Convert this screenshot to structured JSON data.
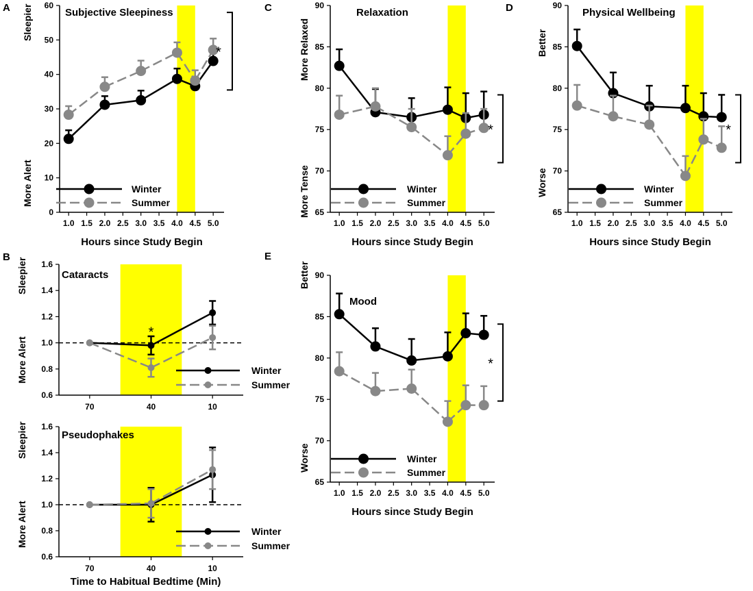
{
  "figure": {
    "shared_xlabel_hours": "Hours since Study Begin",
    "shared_xlabel_bedtime": "Time to Habitual Bedtime (Min)"
  },
  "chart_data": [
    {
      "id": "A",
      "panel_letter": "A",
      "type": "line",
      "title": "Subjective Sleepiness",
      "xlabel": "Hours since Study Begin",
      "ylabel_top": "Sleepier",
      "ylabel_bottom": "More Alert",
      "xlim": [
        0.75,
        5.3
      ],
      "ylim": [
        0,
        60
      ],
      "xticks": [
        1.0,
        1.5,
        2.0,
        2.5,
        3.0,
        3.5,
        4.0,
        4.5,
        5.0
      ],
      "xtick_labels": [
        "1.0",
        "1.5",
        "2.0",
        "2.5",
        "3.0",
        "3.5",
        "4.0",
        "4.5",
        "5.0"
      ],
      "yticks": [
        0,
        10,
        20,
        30,
        40,
        50,
        60
      ],
      "ytick_labels": [
        "0",
        "10",
        "20",
        "30",
        "40",
        "50",
        "60"
      ],
      "highlight": [
        4.0,
        4.5
      ],
      "legend_position": "bottom-left",
      "significance": {
        "label": "*",
        "y_from": 35.5,
        "y_to": 58
      },
      "series": [
        {
          "name": "Winter",
          "color": "#000000",
          "dashed": false,
          "x": [
            1.0,
            2.0,
            3.0,
            4.0,
            4.5,
            5.0
          ],
          "y": [
            21.3,
            31.2,
            32.5,
            38.7,
            36.6,
            43.9
          ],
          "err": [
            2.5,
            2.5,
            2.8,
            3.0,
            2.5,
            2.8
          ]
        },
        {
          "name": "Summer",
          "color": "#888888",
          "dashed": true,
          "x": [
            1.0,
            2.0,
            3.0,
            4.0,
            4.5,
            5.0
          ],
          "y": [
            28.3,
            36.4,
            41.0,
            46.3,
            38.2,
            47.1
          ],
          "err": [
            2.5,
            2.8,
            3.0,
            3.0,
            3.0,
            3.3
          ]
        }
      ]
    },
    {
      "id": "C",
      "panel_letter": "C",
      "type": "line",
      "title": "Relaxation",
      "xlabel": "Hours since Study Begin",
      "ylabel_top": "More Relaxed",
      "ylabel_bottom": "More Tense",
      "xlim": [
        0.75,
        5.3
      ],
      "ylim": [
        65,
        90
      ],
      "xticks": [
        1.0,
        1.5,
        2.0,
        2.5,
        3.0,
        3.5,
        4.0,
        4.5,
        5.0
      ],
      "xtick_labels": [
        "1.0",
        "1.5",
        "2.0",
        "2.5",
        "3.0",
        "3.5",
        "4.0",
        "4.5",
        "5.0"
      ],
      "yticks": [
        65,
        70,
        75,
        80,
        85,
        90
      ],
      "ytick_labels": [
        "65",
        "70",
        "75",
        "80",
        "85",
        "90"
      ],
      "highlight": [
        4.0,
        4.5
      ],
      "legend_position": "bottom-left",
      "significance": {
        "label": "*",
        "y_from": 71,
        "y_to": 79.2
      },
      "series": [
        {
          "name": "Winter",
          "color": "#000000",
          "dashed": false,
          "x": [
            1.0,
            2.0,
            3.0,
            4.0,
            4.5,
            5.0
          ],
          "y": [
            82.7,
            77.1,
            76.5,
            77.4,
            76.4,
            76.8
          ],
          "err": [
            2.0,
            2.8,
            2.3,
            2.7,
            3.0,
            2.8
          ]
        },
        {
          "name": "Summer",
          "color": "#888888",
          "dashed": true,
          "x": [
            1.0,
            2.0,
            3.0,
            4.0,
            4.5,
            5.0
          ],
          "y": [
            76.8,
            77.8,
            75.3,
            71.9,
            74.5,
            75.2
          ],
          "err": [
            2.3,
            2.2,
            2.2,
            2.3,
            2.5,
            2.3
          ]
        }
      ]
    },
    {
      "id": "D",
      "panel_letter": "D",
      "type": "line",
      "title": "Physical Wellbeing",
      "xlabel": "Hours since Study Begin",
      "ylabel_top": "Better",
      "ylabel_bottom": "Worse",
      "xlim": [
        0.75,
        5.3
      ],
      "ylim": [
        65,
        90
      ],
      "xticks": [
        1.0,
        1.5,
        2.0,
        2.5,
        3.0,
        3.5,
        4.0,
        4.5,
        5.0
      ],
      "xtick_labels": [
        "1.0",
        "1.5",
        "2.0",
        "2.5",
        "3.0",
        "3.5",
        "4.0",
        "4.5",
        "5.0"
      ],
      "yticks": [
        65,
        70,
        75,
        80,
        85,
        90
      ],
      "ytick_labels": [
        "65",
        "70",
        "75",
        "80",
        "85",
        "90"
      ],
      "highlight": [
        4.0,
        4.5
      ],
      "legend_position": "bottom-left",
      "significance": {
        "label": "*",
        "y_from": 71,
        "y_to": 79.2
      },
      "series": [
        {
          "name": "Winter",
          "color": "#000000",
          "dashed": false,
          "x": [
            1.0,
            2.0,
            3.0,
            4.0,
            4.5,
            5.0
          ],
          "y": [
            85.1,
            79.4,
            77.8,
            77.6,
            76.6,
            76.5
          ],
          "err": [
            2.0,
            2.5,
            2.5,
            2.7,
            2.8,
            2.7
          ]
        },
        {
          "name": "Summer",
          "color": "#888888",
          "dashed": true,
          "x": [
            1.0,
            2.0,
            3.0,
            4.0,
            4.5,
            5.0
          ],
          "y": [
            77.9,
            76.6,
            75.6,
            69.4,
            73.8,
            72.8
          ],
          "err": [
            2.5,
            2.5,
            2.3,
            2.4,
            2.5,
            2.6
          ]
        }
      ]
    },
    {
      "id": "E",
      "panel_letter": "E",
      "type": "line",
      "title": "Mood",
      "xlabel": "Hours since Study Begin",
      "ylabel_top": "Better",
      "ylabel_bottom": "Worse",
      "xlim": [
        0.75,
        5.3
      ],
      "ylim": [
        65,
        90
      ],
      "xticks": [
        1.0,
        1.5,
        2.0,
        2.5,
        3.0,
        3.5,
        4.0,
        4.5,
        5.0
      ],
      "xtick_labels": [
        "1.0",
        "1.5",
        "2.0",
        "2.5",
        "3.0",
        "3.5",
        "4.0",
        "4.5",
        "5.0"
      ],
      "yticks": [
        65,
        70,
        75,
        80,
        85,
        90
      ],
      "ytick_labels": [
        "65",
        "70",
        "75",
        "80",
        "85",
        "90"
      ],
      "highlight": [
        4.0,
        4.5
      ],
      "legend_position": "bottom-left",
      "significance": {
        "label": "*",
        "y_from": 74.8,
        "y_to": 84.1
      },
      "series": [
        {
          "name": "Winter",
          "color": "#000000",
          "dashed": false,
          "x": [
            1.0,
            2.0,
            3.0,
            4.0,
            4.5,
            5.0
          ],
          "y": [
            85.3,
            81.4,
            79.7,
            80.2,
            83.0,
            82.8
          ],
          "err": [
            2.5,
            2.2,
            2.6,
            2.9,
            2.4,
            2.3
          ]
        },
        {
          "name": "Summer",
          "color": "#888888",
          "dashed": true,
          "x": [
            1.0,
            2.0,
            3.0,
            4.0,
            4.5,
            5.0
          ],
          "y": [
            78.4,
            76.0,
            76.3,
            72.3,
            74.3,
            74.3
          ],
          "err": [
            2.3,
            2.2,
            2.3,
            2.5,
            2.4,
            2.3
          ]
        }
      ]
    },
    {
      "id": "B1",
      "panel_letter": "B",
      "type": "line",
      "title": "Cataracts",
      "xlabel": "",
      "ylabel_top": "Sleepier",
      "ylabel_bottom": "More Alert",
      "xlim": [
        0,
        3
      ],
      "ylim": [
        0.6,
        1.6
      ],
      "xticks": [
        0.5,
        1.5,
        2.5
      ],
      "xtick_labels": [
        "70",
        "40",
        "10"
      ],
      "yticks": [
        0.6,
        0.8,
        1.0,
        1.2,
        1.4,
        1.6
      ],
      "ytick_labels": [
        "0.6",
        "0.8",
        "1.0",
        "1.2",
        "1.4",
        "1.6"
      ],
      "highlight": [
        1.0,
        2.0
      ],
      "reference_line": 1.0,
      "legend_position": "bottom-right",
      "point_annotation": {
        "label": "*",
        "x": 1.5,
        "y": 1.1
      },
      "series": [
        {
          "name": "Winter",
          "color": "#000000",
          "dashed": false,
          "x": [
            0.5,
            1.5,
            2.5
          ],
          "y": [
            1.0,
            0.98,
            1.23
          ],
          "err": [
            0,
            0.07,
            0.09
          ]
        },
        {
          "name": "Summer",
          "color": "#888888",
          "dashed": true,
          "x": [
            0.5,
            1.5,
            2.5
          ],
          "y": [
            1.0,
            0.81,
            1.04
          ],
          "err": [
            0,
            0.07,
            0.09
          ]
        }
      ]
    },
    {
      "id": "B2",
      "panel_letter": "",
      "type": "line",
      "title": "Pseudophakes",
      "xlabel": "Time to Habitual Bedtime (Min)",
      "ylabel_top": "Sleepier",
      "ylabel_bottom": "More Alert",
      "xlim": [
        0,
        3
      ],
      "ylim": [
        0.6,
        1.6
      ],
      "xticks": [
        0.5,
        1.5,
        2.5
      ],
      "xtick_labels": [
        "70",
        "40",
        "10"
      ],
      "yticks": [
        0.6,
        0.8,
        1.0,
        1.2,
        1.4,
        1.6
      ],
      "ytick_labels": [
        "0.6",
        "0.8",
        "1.0",
        "1.2",
        "1.4",
        "1.6"
      ],
      "highlight": [
        1.0,
        2.0
      ],
      "reference_line": 1.0,
      "legend_position": "bottom-right",
      "series": [
        {
          "name": "Winter",
          "color": "#000000",
          "dashed": false,
          "x": [
            0.5,
            1.5,
            2.5
          ],
          "y": [
            1.0,
            1.0,
            1.23
          ],
          "err": [
            0,
            0.13,
            0.21
          ]
        },
        {
          "name": "Summer",
          "color": "#888888",
          "dashed": true,
          "x": [
            0.5,
            1.5,
            2.5
          ],
          "y": [
            1.0,
            1.01,
            1.27
          ],
          "err": [
            0,
            0.11,
            0.15
          ]
        }
      ]
    }
  ]
}
